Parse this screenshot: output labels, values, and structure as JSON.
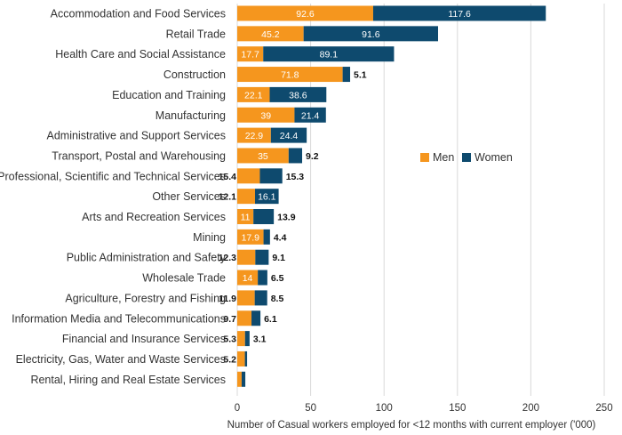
{
  "chart_data": {
    "type": "bar",
    "orientation": "horizontal",
    "stacked": true,
    "categories": [
      "Accommodation and Food Services",
      "Retail Trade",
      "Health Care and Social Assistance",
      "Construction",
      "Education and Training",
      "Manufacturing",
      "Administrative and Support Services",
      "Transport, Postal and Warehousing",
      "Professional, Scientific and Technical Services",
      "Other Services",
      "Arts and Recreation Services",
      "Mining",
      "Public Administration and Safety",
      "Wholesale Trade",
      "Agriculture, Forestry and Fishing",
      "Information Media and Telecommunications",
      "Financial and Insurance Services",
      "Electricity, Gas, Water and Waste Services",
      "Rental, Hiring and Real Estate Services"
    ],
    "series": [
      {
        "name": "Men",
        "color": "#F5961E",
        "values": [
          92.6,
          45.2,
          17.7,
          71.8,
          22.1,
          39,
          22.9,
          35,
          15.4,
          12.1,
          11,
          17.9,
          12.3,
          14,
          11.9,
          9.7,
          5.3,
          5.2,
          3
        ],
        "labels": [
          "92.6",
          "45.2",
          "17.7",
          "71.8",
          "22.1",
          "39",
          "22.9",
          "35",
          "15.4",
          "12.1",
          "11",
          "17.9",
          "12.3",
          "14",
          "11.9",
          "9.7",
          "5.3",
          "5.2",
          ""
        ]
      },
      {
        "name": "Women",
        "color": "#0E4A6E",
        "values": [
          117.6,
          91.6,
          89.1,
          5.1,
          38.6,
          21.4,
          24.4,
          9.2,
          15.3,
          16.1,
          13.9,
          4.4,
          9.1,
          6.5,
          8.5,
          6.1,
          3.1,
          1.5,
          2.5
        ],
        "labels": [
          "117.6",
          "91.6",
          "89.1",
          "5.1",
          "38.6",
          "21.4",
          "24.4",
          "9.2",
          "15.3",
          "16.1",
          "13.9",
          "4.4",
          "9.1",
          "6.5",
          "8.5",
          "6.1",
          "3.1",
          "",
          ""
        ]
      }
    ],
    "xlabel": "Number of Casual workers employed for <12 months with current employer ('000)",
    "xlim": [
      0,
      250
    ],
    "xticks": [
      "0",
      "50",
      "100",
      "150",
      "200",
      "250"
    ],
    "grid": "vertical",
    "legend": "right"
  }
}
